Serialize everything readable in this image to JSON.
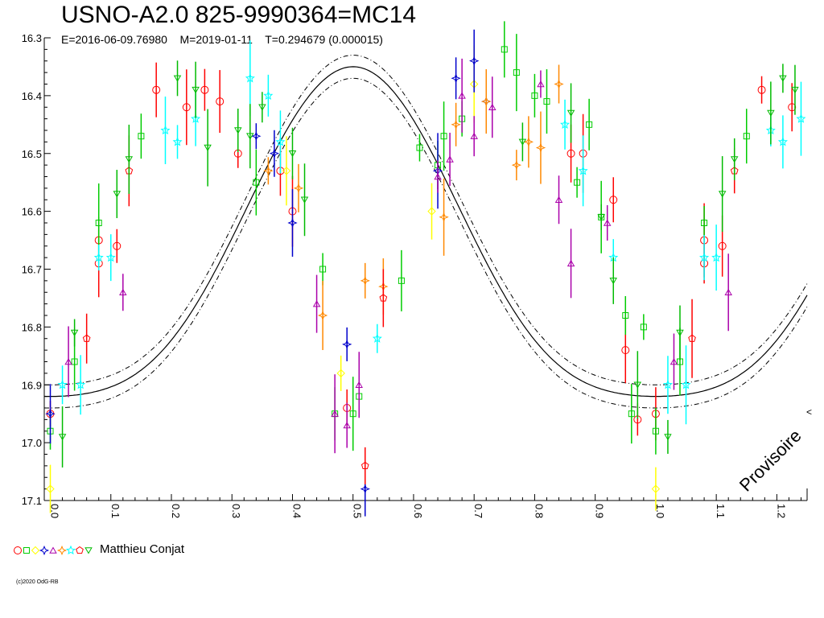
{
  "header": {
    "title": "USNO-A2.0 825-9990364=MC14",
    "subtitle": "E=2016-06-09.76980    M=2019-01-11    T=0.294679 (0.000015)"
  },
  "legend": {
    "label": "Matthieu Conjat",
    "colors": [
      "#ff0000",
      "#00cc00",
      "#ffff00",
      "#0000cc",
      "#aa00aa",
      "#ff8800",
      "#00ffff",
      "#ff0000",
      "#00bb00"
    ]
  },
  "watermark": "Provisoire",
  "right_marker": "<",
  "copyright": "(c)2020 OdG-RB",
  "chart_data": {
    "type": "scatter",
    "xlim": [
      -0.01,
      1.25
    ],
    "ylim": [
      17.1,
      16.3
    ],
    "x_ticks": [
      "0.0",
      "0.1",
      "0.2",
      "0.3",
      "0.4",
      "0.5",
      "0.6",
      "0.7",
      "0.8",
      "0.9",
      "1.0",
      "1.1",
      "1.2"
    ],
    "y_ticks": [
      "16.3",
      "16.4",
      "16.5",
      "16.6",
      "16.7",
      "16.8",
      "16.9",
      "17.0",
      "17.1"
    ],
    "model_curve": {
      "phase_ref": "0.0",
      "mean": 16.69,
      "a1": 0.285,
      "a2": 0.055,
      "band": 0.02
    },
    "series": [
      {
        "marker": "circle",
        "color": "#ff0000",
        "points": [
          [
            0.0,
            16.95
          ],
          [
            0.08,
            16.65
          ],
          [
            0.08,
            16.69
          ],
          [
            0.11,
            16.66
          ],
          [
            0.175,
            16.39
          ],
          [
            0.225,
            16.42
          ],
          [
            0.255,
            16.39
          ],
          [
            0.28,
            16.41
          ],
          [
            0.31,
            16.5
          ],
          [
            0.38,
            16.53
          ],
          [
            0.4,
            16.6
          ],
          [
            0.49,
            16.94
          ],
          [
            0.86,
            16.5
          ],
          [
            0.88,
            16.5
          ],
          [
            0.93,
            16.58
          ],
          [
            0.95,
            16.84
          ],
          [
            0.97,
            16.96
          ],
          [
            1.0,
            16.95
          ],
          [
            1.08,
            16.65
          ],
          [
            1.08,
            16.69
          ],
          [
            1.11,
            16.66
          ],
          [
            1.175,
            16.39
          ],
          [
            1.225,
            16.42
          ]
        ]
      },
      {
        "marker": "square",
        "color": "#00cc00",
        "points": [
          [
            0.0,
            16.98
          ],
          [
            0.04,
            16.86
          ],
          [
            0.08,
            16.62
          ],
          [
            0.15,
            16.47
          ],
          [
            0.34,
            16.55
          ],
          [
            0.45,
            16.7
          ],
          [
            0.47,
            16.95
          ],
          [
            0.5,
            16.95
          ],
          [
            0.51,
            16.92
          ],
          [
            0.58,
            16.72
          ],
          [
            0.61,
            16.49
          ],
          [
            0.64,
            16.52
          ],
          [
            0.65,
            16.47
          ],
          [
            0.68,
            16.44
          ],
          [
            0.75,
            16.32
          ],
          [
            0.77,
            16.36
          ],
          [
            0.8,
            16.4
          ],
          [
            0.82,
            16.41
          ],
          [
            0.87,
            16.55
          ],
          [
            0.89,
            16.45
          ],
          [
            0.91,
            16.61
          ],
          [
            0.95,
            16.78
          ],
          [
            0.96,
            16.95
          ],
          [
            0.98,
            16.8
          ],
          [
            1.0,
            16.98
          ],
          [
            1.04,
            16.86
          ],
          [
            1.08,
            16.62
          ],
          [
            1.15,
            16.47
          ]
        ]
      },
      {
        "marker": "diamond",
        "color": "#ffff00",
        "points": [
          [
            0.0,
            17.08
          ],
          [
            0.39,
            16.53
          ],
          [
            0.48,
            16.88
          ],
          [
            0.63,
            16.6
          ],
          [
            0.7,
            16.38
          ],
          [
            1.0,
            17.08
          ]
        ]
      },
      {
        "marker": "star4",
        "color": "#0000cc",
        "points": [
          [
            0.0,
            16.95
          ],
          [
            0.34,
            16.47
          ],
          [
            0.37,
            16.5
          ],
          [
            0.4,
            16.62
          ],
          [
            0.49,
            16.83
          ],
          [
            0.52,
            17.08
          ],
          [
            0.64,
            16.53
          ],
          [
            0.67,
            16.37
          ],
          [
            0.7,
            16.34
          ],
          [
            0.72,
            16.41
          ]
        ]
      },
      {
        "marker": "triangle",
        "color": "#aa00aa",
        "points": [
          [
            0.03,
            16.86
          ],
          [
            0.12,
            16.74
          ],
          [
            0.44,
            16.76
          ],
          [
            0.47,
            16.95
          ],
          [
            0.49,
            16.97
          ],
          [
            0.51,
            16.9
          ],
          [
            0.64,
            16.54
          ],
          [
            0.66,
            16.51
          ],
          [
            0.68,
            16.4
          ],
          [
            0.7,
            16.47
          ],
          [
            0.73,
            16.42
          ],
          [
            0.81,
            16.38
          ],
          [
            0.84,
            16.58
          ],
          [
            0.86,
            16.69
          ],
          [
            0.92,
            16.62
          ],
          [
            1.03,
            16.86
          ],
          [
            1.12,
            16.74
          ]
        ]
      },
      {
        "marker": "star4",
        "color": "#ff8800",
        "points": [
          [
            0.36,
            16.53
          ],
          [
            0.41,
            16.56
          ],
          [
            0.45,
            16.78
          ],
          [
            0.52,
            16.72
          ],
          [
            0.55,
            16.73
          ],
          [
            0.65,
            16.61
          ],
          [
            0.67,
            16.45
          ],
          [
            0.72,
            16.41
          ],
          [
            0.77,
            16.52
          ],
          [
            0.79,
            16.48
          ],
          [
            0.81,
            16.49
          ],
          [
            0.84,
            16.38
          ]
        ]
      },
      {
        "marker": "star5",
        "color": "#00ffff",
        "points": [
          [
            0.02,
            16.9
          ],
          [
            0.05,
            16.9
          ],
          [
            0.08,
            16.68
          ],
          [
            0.1,
            16.68
          ],
          [
            0.19,
            16.46
          ],
          [
            0.21,
            16.48
          ],
          [
            0.24,
            16.44
          ],
          [
            0.33,
            16.37
          ],
          [
            0.36,
            16.4
          ],
          [
            0.38,
            16.48
          ],
          [
            0.54,
            16.82
          ],
          [
            0.85,
            16.45
          ],
          [
            0.88,
            16.53
          ],
          [
            0.93,
            16.68
          ],
          [
            1.02,
            16.9
          ],
          [
            1.05,
            16.9
          ],
          [
            1.08,
            16.68
          ],
          [
            1.1,
            16.68
          ],
          [
            1.19,
            16.46
          ],
          [
            1.21,
            16.48
          ],
          [
            1.24,
            16.44
          ]
        ]
      },
      {
        "marker": "pentagon",
        "color": "#ff0000",
        "points": [
          [
            0.06,
            16.82
          ],
          [
            0.13,
            16.53
          ],
          [
            0.52,
            17.04
          ],
          [
            0.55,
            16.75
          ],
          [
            1.06,
            16.82
          ],
          [
            1.13,
            16.53
          ]
        ]
      },
      {
        "marker": "triangle-down",
        "color": "#00bb00",
        "points": [
          [
            0.02,
            16.99
          ],
          [
            0.04,
            16.81
          ],
          [
            0.11,
            16.57
          ],
          [
            0.13,
            16.51
          ],
          [
            0.21,
            16.37
          ],
          [
            0.24,
            16.39
          ],
          [
            0.26,
            16.49
          ],
          [
            0.31,
            16.46
          ],
          [
            0.33,
            16.47
          ],
          [
            0.35,
            16.42
          ],
          [
            0.4,
            16.5
          ],
          [
            0.42,
            16.58
          ],
          [
            0.78,
            16.48
          ],
          [
            0.86,
            16.43
          ],
          [
            0.91,
            16.61
          ],
          [
            0.93,
            16.72
          ],
          [
            0.97,
            16.9
          ],
          [
            1.02,
            16.99
          ],
          [
            1.04,
            16.81
          ],
          [
            1.11,
            16.57
          ],
          [
            1.13,
            16.51
          ],
          [
            1.19,
            16.43
          ],
          [
            1.21,
            16.37
          ],
          [
            1.23,
            16.39
          ]
        ]
      }
    ]
  }
}
